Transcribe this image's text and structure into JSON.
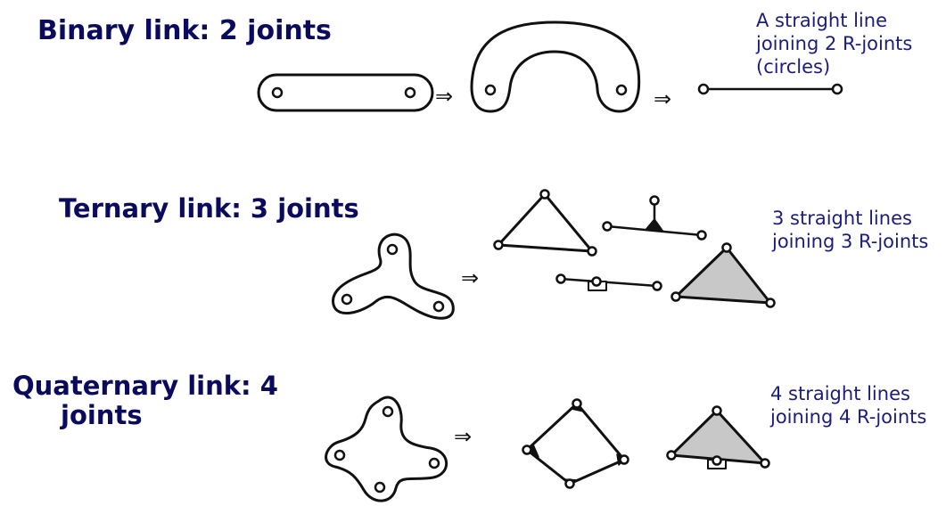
{
  "colors": {
    "heading": "#0b0b5e",
    "note": "#1c1c7a",
    "stroke": "#111111",
    "fill": "#c8c8c8"
  },
  "binary": {
    "heading": "Binary link: 2 joints",
    "note_lines": [
      "A straight line",
      "joining 2 R-joints",
      "(circles)"
    ],
    "arrow": "⇒"
  },
  "ternary": {
    "heading": "Ternary link: 3 joints",
    "note_lines": [
      "3 straight lines",
      "joining 3 R-joints"
    ],
    "arrow": "⇒"
  },
  "quaternary": {
    "heading_lines": [
      "Quaternary link: 4",
      "joints"
    ],
    "note_lines": [
      "4 straight lines",
      "joining 4 R-joints"
    ],
    "arrow": "⇒"
  }
}
